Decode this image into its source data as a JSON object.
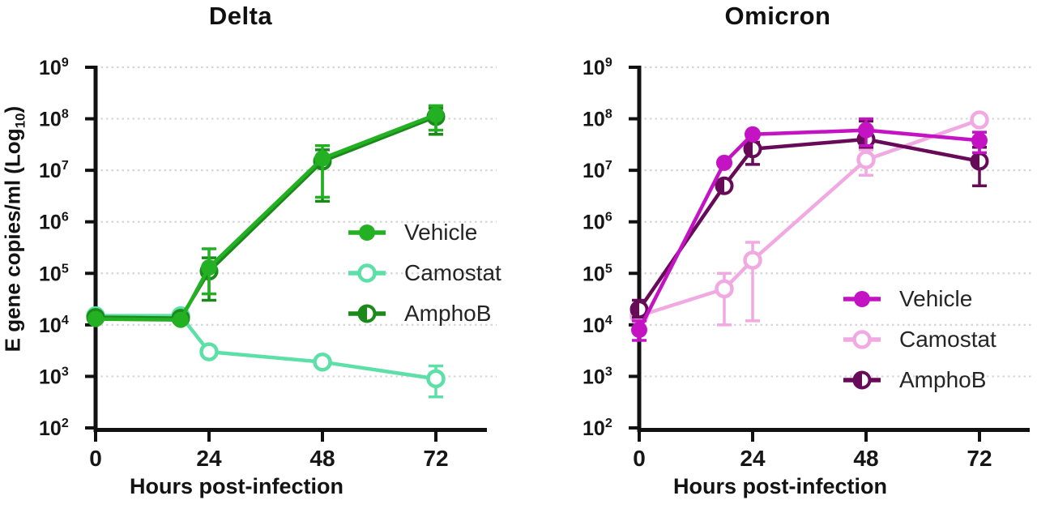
{
  "figure": {
    "ylabel": {
      "pre": "E gene copies/ml (Log",
      "sub": "10",
      "post": ")"
    }
  },
  "chart_data": [
    {
      "type": "line",
      "title": "Delta",
      "xlabel": "Hours post-infection",
      "ylabel": "E gene copies/ml (Log10)",
      "x": [
        0,
        18,
        24,
        48,
        72
      ],
      "xticks": [
        0,
        24,
        48,
        72
      ],
      "yscale": "log",
      "ylim": [
        100,
        1000000000
      ],
      "grid": "dotted-horizontal",
      "legend_position": "inside-right-middle",
      "series": [
        {
          "name": "Vehicle",
          "color": "#23b123",
          "marker": "filled-circle",
          "values": [
            13000,
            12500,
            130000,
            17000000,
            120000000
          ],
          "err_lo": [
            null,
            null,
            40000,
            3000000,
            60000000
          ],
          "err_hi": [
            null,
            null,
            300000,
            30000000,
            180000000
          ]
        },
        {
          "name": "Camostat",
          "color": "#5ce0a8",
          "marker": "open-circle",
          "values": [
            15000,
            15000,
            3000,
            1900,
            900
          ],
          "err_lo": [
            null,
            null,
            null,
            null,
            400
          ],
          "err_hi": [
            null,
            null,
            null,
            null,
            1600
          ]
        },
        {
          "name": "AmphoB",
          "color": "#1b8a1b",
          "marker": "half-filled-circle",
          "values": [
            14000,
            13500,
            110000,
            15000000,
            110000000
          ],
          "err_lo": [
            null,
            null,
            30000,
            2500000,
            50000000
          ],
          "err_hi": [
            null,
            null,
            200000,
            25000000,
            160000000
          ]
        }
      ]
    },
    {
      "type": "line",
      "title": "Omicron",
      "xlabel": "Hours post-infection",
      "ylabel": "E gene copies/ml (Log10)",
      "x": [
        0,
        18,
        24,
        48,
        72
      ],
      "xticks": [
        0,
        24,
        48,
        72
      ],
      "yscale": "log",
      "ylim": [
        100,
        1000000000
      ],
      "grid": "dotted-horizontal",
      "legend_position": "inside-right-lower",
      "series": [
        {
          "name": "Vehicle",
          "color": "#c313c3",
          "marker": "filled-circle",
          "values": [
            8000,
            14000000,
            50000000,
            60000000,
            38000000
          ],
          "err_lo": [
            5000,
            null,
            null,
            30000000,
            22000000
          ],
          "err_hi": [
            12000,
            null,
            null,
            100000000,
            55000000
          ]
        },
        {
          "name": "Camostat",
          "color": "#f1a9e2",
          "marker": "open-circle",
          "values": [
            15000,
            50000,
            180000,
            16000000,
            95000000
          ],
          "err_lo": [
            null,
            10000,
            12000,
            8000000,
            null
          ],
          "err_hi": [
            null,
            100000,
            400000,
            25000000,
            null
          ]
        },
        {
          "name": "AmphoB",
          "color": "#670b59",
          "marker": "half-filled-circle",
          "values": [
            20000,
            5000000,
            26000000,
            40000000,
            15000000
          ],
          "err_lo": [
            14000,
            null,
            13000000,
            28000000,
            5000000
          ],
          "err_hi": [
            30000,
            null,
            35000000,
            90000000,
            28000000
          ]
        }
      ]
    }
  ]
}
